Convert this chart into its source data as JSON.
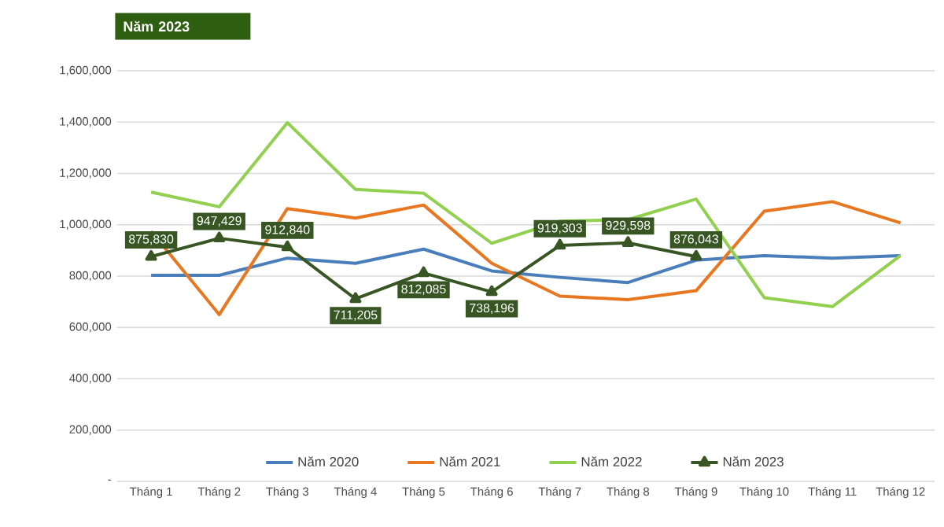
{
  "chart_data": {
    "type": "line",
    "title": "Năm 2023",
    "categories": [
      "Tháng 1",
      "Tháng 2",
      "Tháng 3",
      "Tháng 4",
      "Tháng 5",
      "Tháng 6",
      "Tháng 7",
      "Tháng 8",
      "Tháng 9",
      "Tháng 10",
      "Tháng 11",
      "Tháng 12"
    ],
    "series": [
      {
        "name": "Năm 2020",
        "color": "#4a7ebb",
        "values": [
          803000,
          803000,
          870000,
          850000,
          905000,
          820000,
          795000,
          775000,
          862000,
          880000,
          870000,
          880000
        ]
      },
      {
        "name": "Năm 2021",
        "color": "#e87722",
        "values": [
          975000,
          650000,
          1063000,
          1026000,
          1077000,
          850000,
          722000,
          708000,
          743000,
          1053000,
          1090000,
          1007000
        ]
      },
      {
        "name": "Năm 2022",
        "color": "#92d050",
        "values": [
          1127000,
          1070000,
          1398000,
          1138000,
          1123000,
          928000,
          1014000,
          1020000,
          1100000,
          716000,
          681000,
          880000
        ]
      },
      {
        "name": "Năm 2023",
        "color": "#375623",
        "marker": "triangle",
        "values": [
          875830,
          947429,
          912840,
          711205,
          812085,
          738196,
          919303,
          929598,
          876043,
          null,
          null,
          null
        ],
        "value_labels": [
          "875,830",
          "947,429",
          "912,840",
          "711,205",
          "812,085",
          "738,196",
          "919,303",
          "929,598",
          "876,043",
          null,
          null,
          null
        ]
      }
    ],
    "ylim": [
      0,
      1600000
    ],
    "yticks": [
      {
        "value": 0,
        "label": "-"
      },
      {
        "value": 200000,
        "label": "200,000"
      },
      {
        "value": 400000,
        "label": "400,000"
      },
      {
        "value": 600000,
        "label": "600,000"
      },
      {
        "value": 800000,
        "label": "800,000"
      },
      {
        "value": 1000000,
        "label": "1,000,000"
      },
      {
        "value": 1200000,
        "label": "1,200,000"
      },
      {
        "value": 1400000,
        "label": "1,400,000"
      },
      {
        "value": 1600000,
        "label": "1,600,000"
      }
    ],
    "grid": "y",
    "legend": "bottom"
  }
}
